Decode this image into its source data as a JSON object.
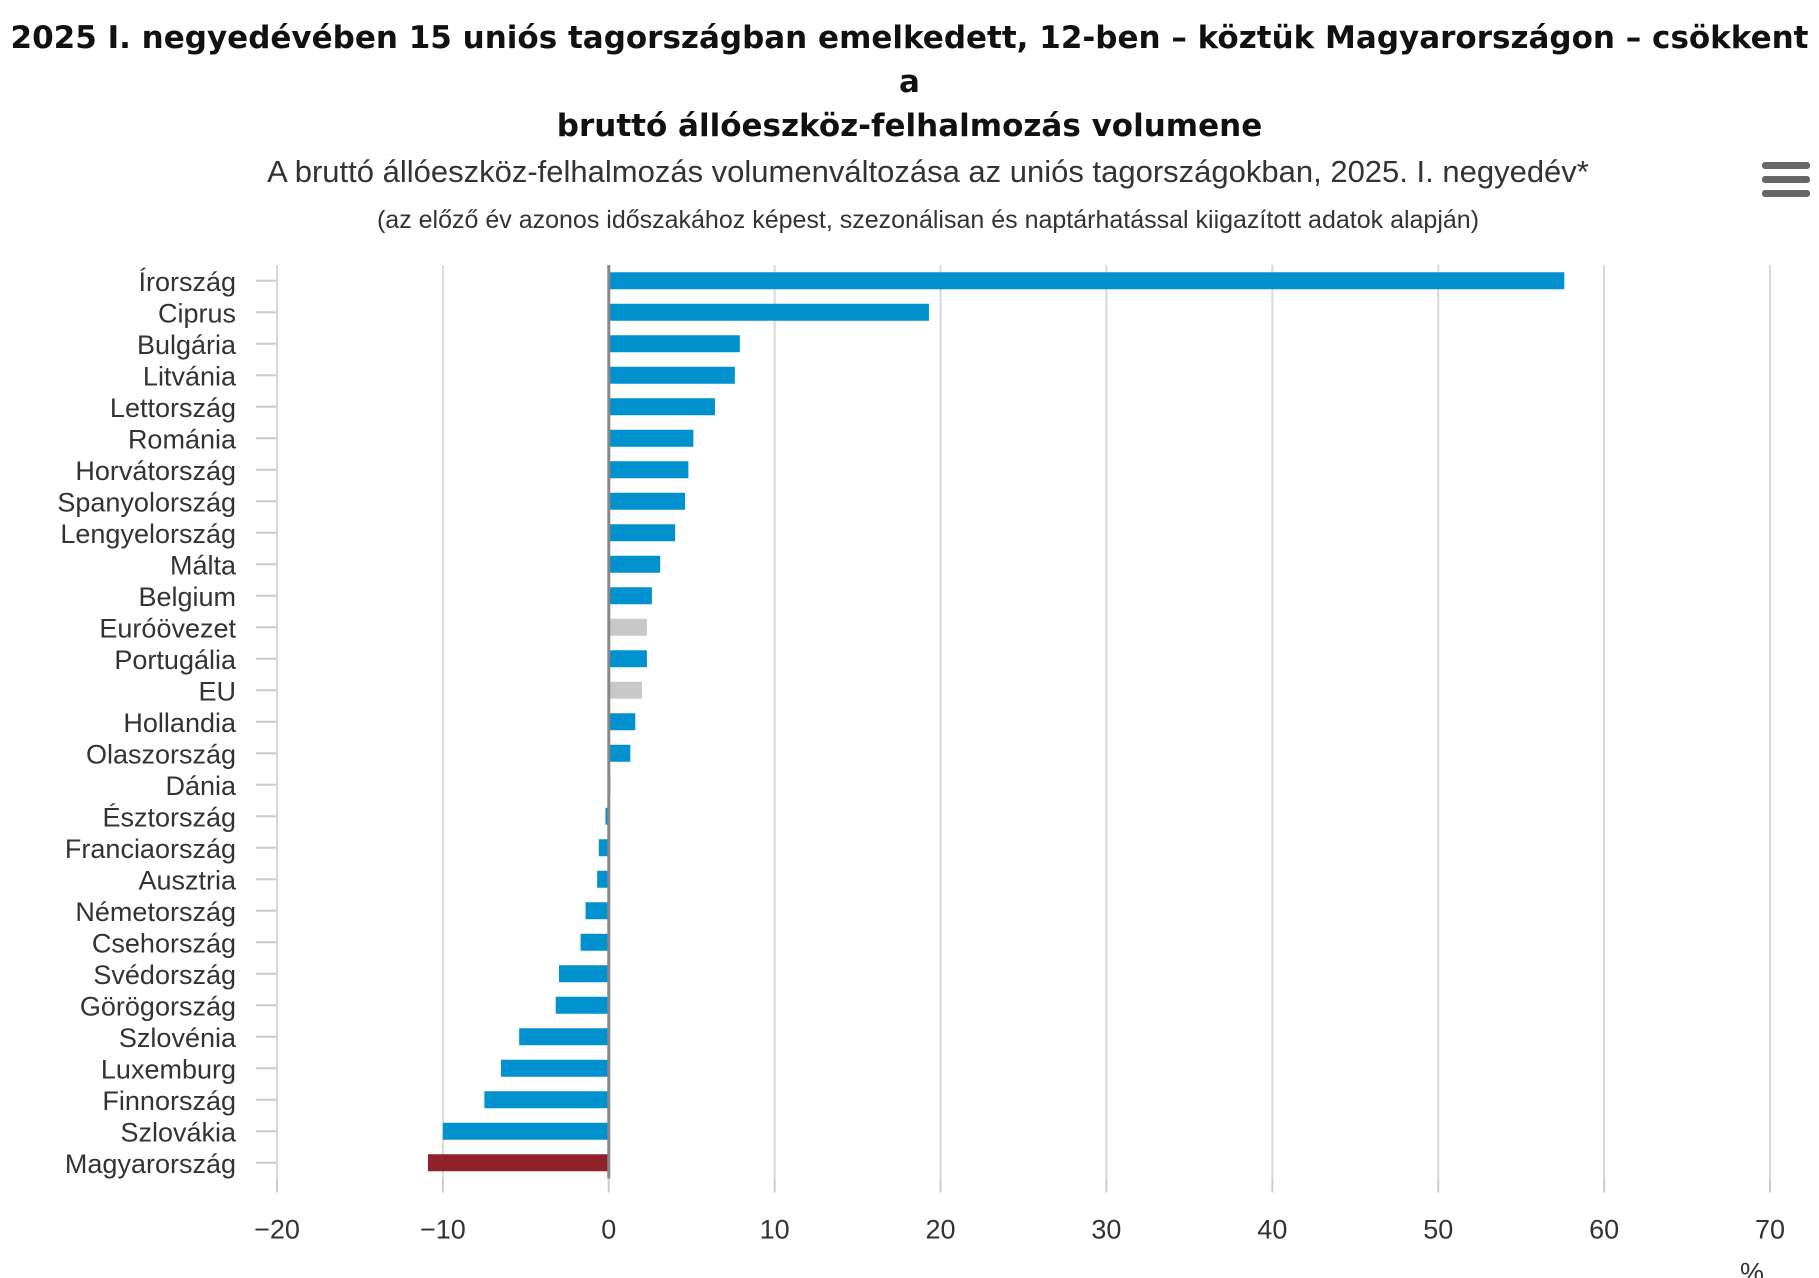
{
  "headline": {
    "line1": "2025 I. negyedévében 15 uniós tagországban emelkedett, 12-ben – köztük Magyarországon – csökkent a",
    "line2": "bruttó állóeszköz-felhalmozás volumene"
  },
  "menu": {
    "icon": "hamburger-menu-icon"
  },
  "chart_data": {
    "type": "bar",
    "orientation": "horizontal",
    "title": "A bruttó állóeszköz-felhalmozás volumenváltozása az uniós tagországokban, 2025. I. negyedév*",
    "subtitle": "(az előző év azonos időszakához képest, szezonálisan és naptárhatással kiigazított adatok alapján)",
    "xlabel": "%",
    "xlim": [
      -20,
      70
    ],
    "xticks": [
      -20,
      -10,
      0,
      10,
      20,
      30,
      40,
      50,
      60,
      70
    ],
    "xtick_labels": [
      "−20",
      "−10",
      "0",
      "10",
      "20",
      "30",
      "40",
      "50",
      "60",
      "70"
    ],
    "grid": true,
    "colors": {
      "default": "#0091ce",
      "aggregate": "#c8c8c8",
      "highlight": "#8f2228",
      "zero_line": "#888888",
      "grid": "#d9d9d9"
    },
    "categories": [
      "Írország",
      "Ciprus",
      "Bulgária",
      "Litvánia",
      "Lettország",
      "Románia",
      "Horvátország",
      "Spanyolország",
      "Lengyelország",
      "Málta",
      "Belgium",
      "Euróövezet",
      "Portugália",
      "EU",
      "Hollandia",
      "Olaszország",
      "Dánia",
      "Észtország",
      "Franciaország",
      "Ausztria",
      "Németország",
      "Csehország",
      "Svédország",
      "Görögország",
      "Szlovénia",
      "Luxemburg",
      "Finnország",
      "Szlovákia",
      "Magyarország"
    ],
    "values": [
      57.6,
      19.3,
      7.9,
      7.6,
      6.4,
      5.1,
      4.8,
      4.6,
      4.0,
      3.1,
      2.6,
      2.3,
      2.3,
      2.0,
      1.6,
      1.3,
      0.1,
      -0.2,
      -0.6,
      -0.7,
      -1.4,
      -1.7,
      -3.0,
      -3.2,
      -5.4,
      -6.5,
      -7.5,
      -10.0,
      -10.9
    ],
    "bar_kinds": [
      "default",
      "default",
      "default",
      "default",
      "default",
      "default",
      "default",
      "default",
      "default",
      "default",
      "default",
      "aggregate",
      "default",
      "aggregate",
      "default",
      "default",
      "default",
      "default",
      "default",
      "default",
      "default",
      "default",
      "default",
      "default",
      "default",
      "default",
      "default",
      "default",
      "highlight"
    ]
  }
}
